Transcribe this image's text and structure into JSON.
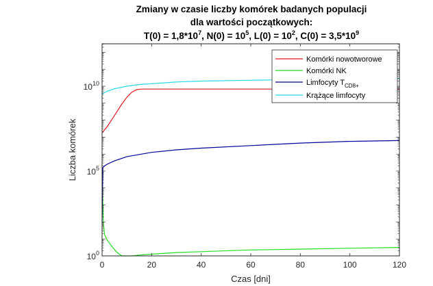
{
  "chart_data": {
    "type": "line",
    "title_lines": [
      "Zmiany w czasie liczby komórek badanych populacji",
      "dla wartości początkowych:"
    ],
    "title_formula": {
      "T_prefix": "T(0) = 1,8*10",
      "T_exp": "7",
      "N_prefix": ", N(0) = 10",
      "N_exp": "5",
      "L_prefix": ", L(0) = 10",
      "L_exp": "2",
      "C_prefix": ", C(0) = 3,5*10",
      "C_exp": "9"
    },
    "xlabel": "Czas [dni]",
    "ylabel": "Liczba komórek",
    "xlim": [
      0,
      120
    ],
    "ylim_log10": [
      0,
      12.5
    ],
    "yscale": "log",
    "x_ticks": [
      "0",
      "20",
      "40",
      "60",
      "80",
      "100",
      "120"
    ],
    "y_ticks": [
      {
        "value": 1,
        "base": "10",
        "exp": "0"
      },
      {
        "value": 100000,
        "base": "10",
        "exp": "5"
      },
      {
        "value": 10000000000,
        "base": "10",
        "exp": "10"
      }
    ],
    "grid": false,
    "legend_position": "top-right",
    "series": [
      {
        "name": "Komórki nowotworowe",
        "color": "#e31a1c",
        "x": [
          0,
          2,
          4,
          6,
          8,
          10,
          12,
          14,
          16,
          18,
          20,
          40,
          60,
          80,
          100,
          120
        ],
        "y": [
          17700000,
          39800000,
          112000000,
          316000000,
          891000000,
          2240000000,
          4470000000,
          6310000000,
          6760000000,
          6760000000,
          6760000000,
          6760000000,
          6760000000,
          6760000000,
          6760000000,
          6760000000
        ]
      },
      {
        "name": "Komórki NK",
        "color": "#22dd22",
        "x": [
          0,
          0.5,
          1,
          2,
          4,
          6,
          8,
          10,
          12,
          15,
          20,
          30,
          40,
          60,
          80,
          100,
          120
        ],
        "y": [
          100000,
          100,
          18,
          8.9,
          3.5,
          1.6,
          0.89,
          0.79,
          0.89,
          1.12,
          1.26,
          1.58,
          1.78,
          2.24,
          2.51,
          2.82,
          3.16
        ]
      },
      {
        "name": "Limfocyty T",
        "name_subscript": "CD8+",
        "color": "#000099",
        "x": [
          0,
          0.3,
          1,
          2,
          5,
          10,
          20,
          30,
          40,
          60,
          80,
          100,
          120
        ],
        "y": [
          100,
          158000,
          200000,
          251000,
          398000,
          708000,
          1260000,
          1780000,
          2240000,
          3160000,
          4470000,
          5620000,
          6310000
        ]
      },
      {
        "name": "Krążące limfocyty",
        "color": "#22d8ea",
        "x": [
          0,
          2,
          5,
          10,
          15,
          20,
          30,
          40,
          60,
          80,
          100,
          120
        ],
        "y": [
          3500000000,
          5010000000,
          7080000000,
          10000000000,
          12600000000,
          14100000000,
          17800000000,
          20000000000,
          22400000000,
          25100000000,
          26600000000,
          28200000000
        ]
      }
    ]
  }
}
